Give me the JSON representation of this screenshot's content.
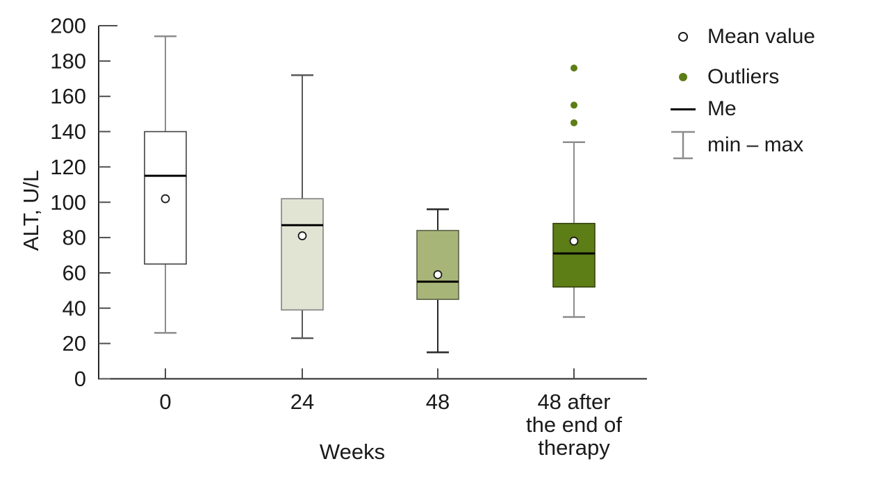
{
  "chart_data": {
    "type": "box",
    "title": "",
    "xlabel": "Weeks",
    "ylabel": "ALT, U/L",
    "ylim": [
      0,
      200
    ],
    "yticks": [
      0,
      20,
      40,
      60,
      80,
      100,
      120,
      140,
      160,
      180,
      200
    ],
    "grid": false,
    "legend_position": "right",
    "categories": [
      [
        "0"
      ],
      [
        "24"
      ],
      [
        "48"
      ],
      [
        "48 after",
        "the end of",
        "therapy"
      ]
    ],
    "series": [
      {
        "name": "week-0",
        "min": 26,
        "q1": 65,
        "median": 115,
        "q3": 140,
        "max": 194,
        "mean": 102,
        "outliers": [],
        "box_fill": "#ffffff",
        "box_border": "#404040",
        "whisker_color": "#8c8c8c"
      },
      {
        "name": "week-24",
        "min": 23,
        "q1": 39,
        "median": 87,
        "q3": 102,
        "max": 172,
        "mean": 81,
        "outliers": [],
        "box_fill": "#e2e4d3",
        "box_border": "#808080",
        "whisker_color": "#595959"
      },
      {
        "name": "week-48",
        "min": 15,
        "q1": 45,
        "median": 55,
        "q3": 84,
        "max": 96,
        "mean": 59,
        "outliers": [],
        "box_fill": "#a7b578",
        "box_border": "#5a5f46",
        "whisker_color": "#262626"
      },
      {
        "name": "week-48-after-end-of-therapy",
        "min": 35,
        "q1": 52,
        "median": 71,
        "q3": 88,
        "max": 134,
        "mean": 78,
        "outliers": [
          176,
          155,
          145
        ],
        "box_fill": "#5d7d17",
        "box_border": "#36430e",
        "whisker_color": "#8c8c8c"
      }
    ],
    "median_color": "#000000",
    "mean_marker": {
      "fill": "#ffffff",
      "stroke": "#1a1a1a"
    },
    "outlier_color": "#5d7d17",
    "legend": [
      {
        "label": "Mean value",
        "icon": "open-circle"
      },
      {
        "label": "Outliers",
        "icon": "filled-circle"
      },
      {
        "label": "Me",
        "icon": "median-line"
      },
      {
        "label": "min – max",
        "icon": "whisker"
      }
    ]
  }
}
